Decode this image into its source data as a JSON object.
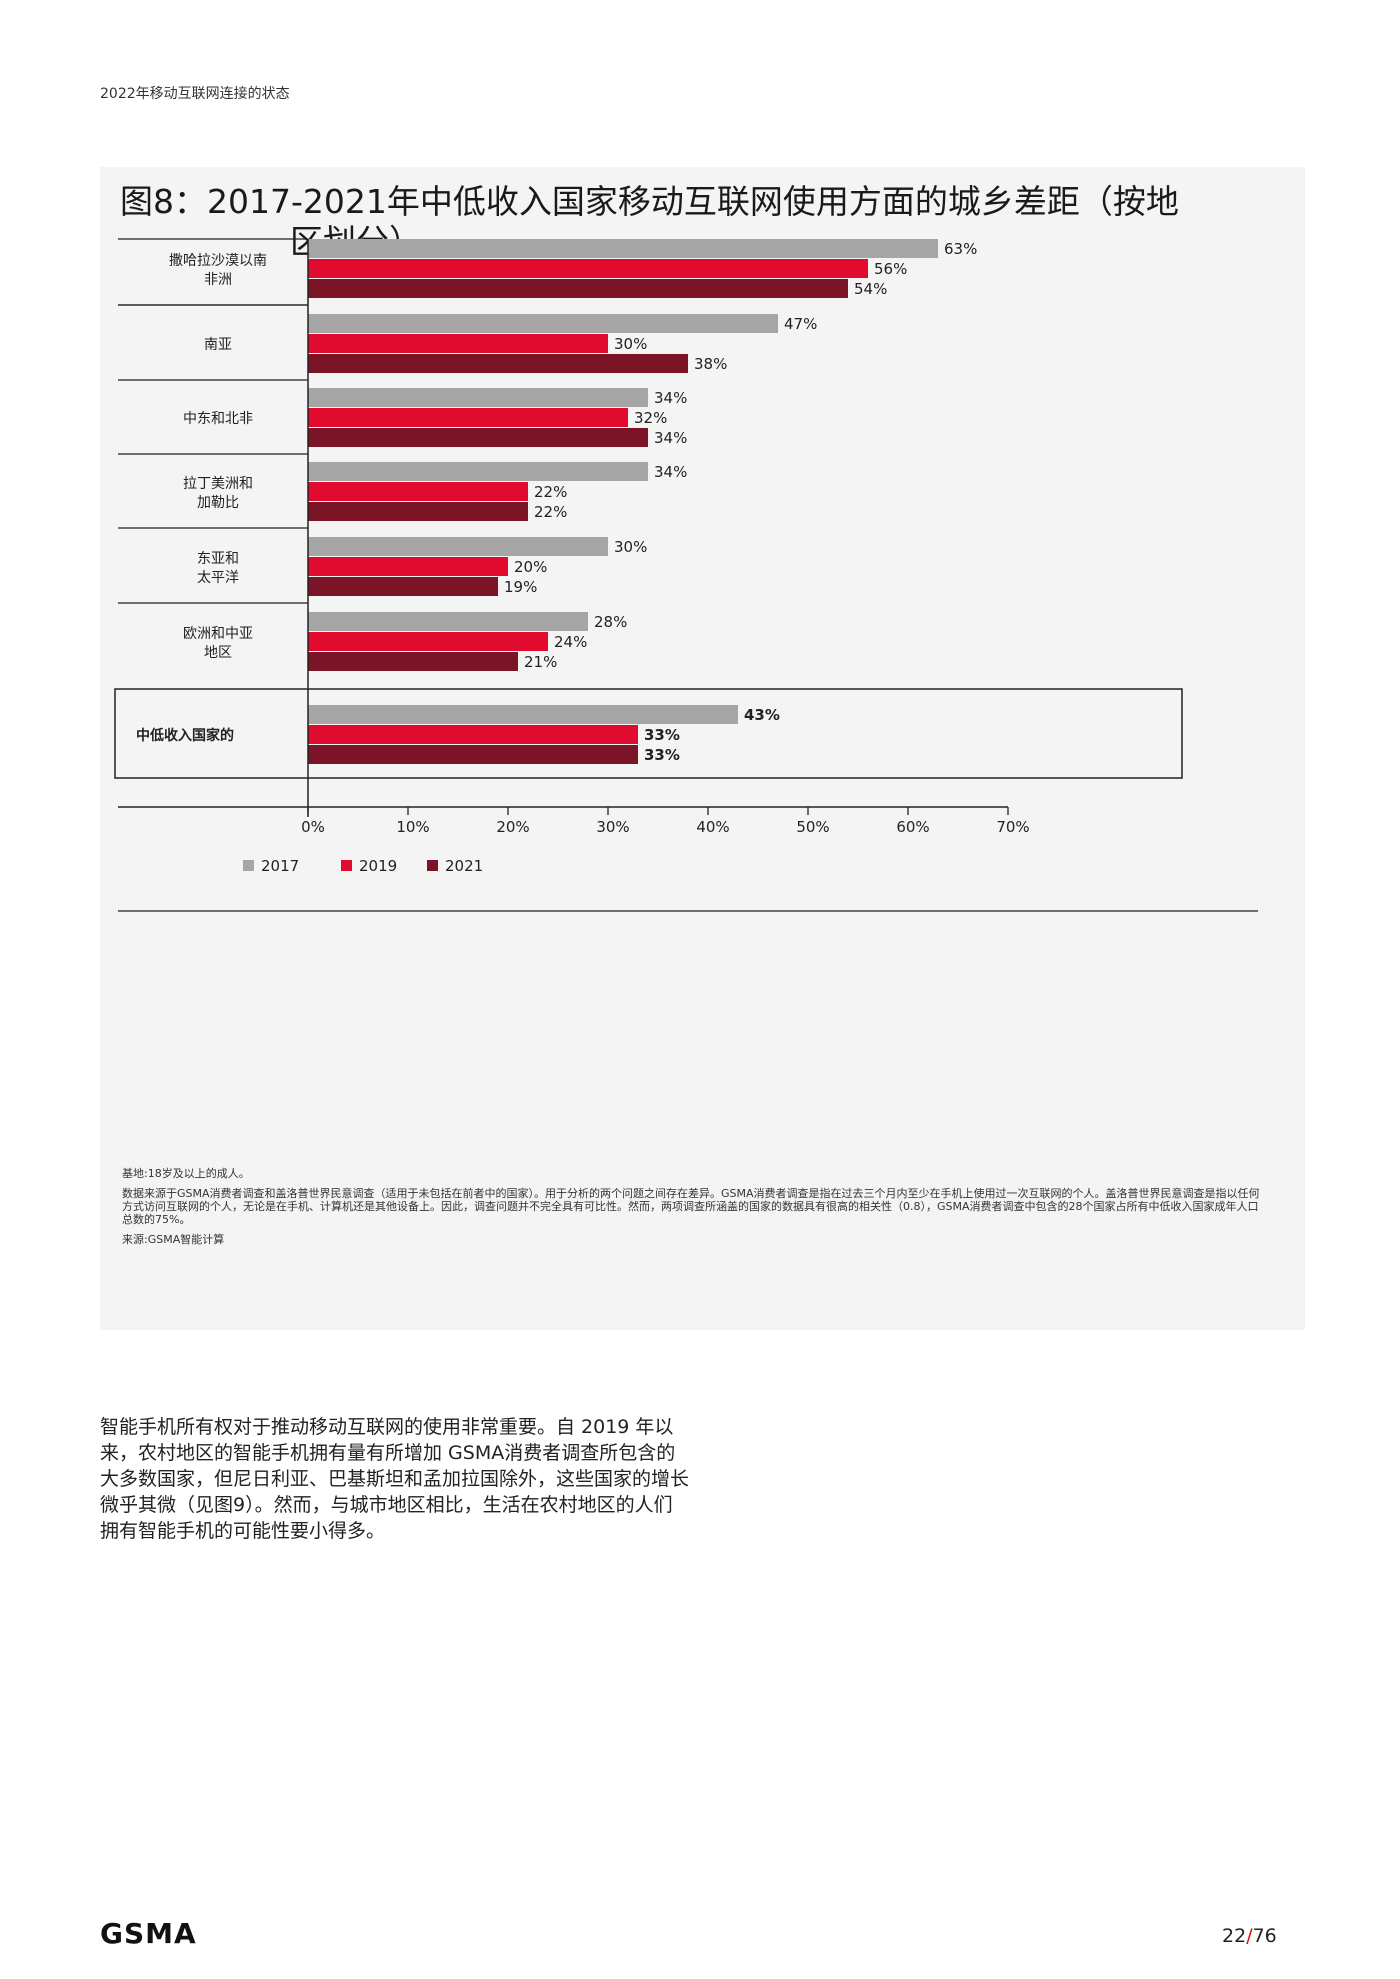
{
  "header": {
    "title": "2022年移动互联网连接的状态"
  },
  "figure": {
    "title_line1": "图8：2017-2021年中低收入国家移动互联网使用方面的城乡差距（按地",
    "title_line2": "区划分）"
  },
  "chart_data": {
    "type": "bar",
    "orientation": "horizontal",
    "categories": [
      [
        "撒哈拉沙漠以南",
        "非洲"
      ],
      [
        "南亚"
      ],
      [
        "中东和北非"
      ],
      [
        "拉丁美洲和",
        "加勒比"
      ],
      [
        "东亚和",
        "太平洋"
      ],
      [
        "欧洲和中亚",
        "地区"
      ],
      [
        "中低收入国家的"
      ]
    ],
    "series": [
      {
        "name": "2017",
        "color": "#a6a6a6",
        "values": [
          63,
          47,
          34,
          34,
          30,
          28,
          43
        ],
        "labels": [
          "63%",
          "47%",
          "34%",
          "34%",
          "30%",
          "28%",
          "43%"
        ]
      },
      {
        "name": "2019",
        "color": "#e10a2f",
        "values": [
          56,
          30,
          32,
          22,
          20,
          24,
          33
        ],
        "labels": [
          "56%",
          "30%",
          "32%",
          "22%",
          "20%",
          "24%",
          "33%"
        ]
      },
      {
        "name": "2021",
        "color": "#7a1426",
        "values": [
          54,
          38,
          34,
          22,
          19,
          21,
          33
        ],
        "labels": [
          "54%",
          "38%",
          "34%",
          "22%",
          "19%",
          "21%",
          "33%"
        ]
      }
    ],
    "xlim": [
      0,
      70
    ],
    "xticks": [
      "0%",
      "10%",
      "20%",
      "30%",
      "40%",
      "50%",
      "60%",
      "70%"
    ],
    "highlighted_category": 6,
    "legend_position": "bottom-left"
  },
  "notes": {
    "base": "基地:18岁及以上的成人。",
    "source_detail": "数据来源于GSMA消费者调查和盖洛普世界民意调查（适用于未包括在前者中的国家）。用于分析的两个问题之间存在差异。GSMA消费者调查是指在过去三个月内至少在手机上使用过一次互联网的个人。盖洛普世界民意调查是指以任何方式访问互联网的个人，无论是在手机、计算机还是其他设备上。因此，调查问题并不完全具有可比性。然而，两项调查所涵盖的国家的数据具有很高的相关性（0.8），GSMA消费者调查中包含的28个国家占所有中低收入国家成年人口总数的75%。",
    "source": "来源:GSMA智能计算"
  },
  "body": {
    "paragraph": "智能手机所有权对于推动移动互联网的使用非常重要。自 2019 年以来，农村地区的智能手机拥有量有所增加 GSMA消费者调查所包含的大多数国家，但尼日利亚、巴基斯坦和孟加拉国除外，这些国家的增长微乎其微（见图9）。然而，与城市地区相比，生活在农村地区的人们拥有智能手机的可能性要小得多。"
  },
  "footer": {
    "logo": "GSMA",
    "page_current": "22",
    "page_sep": "/",
    "page_total": "76"
  }
}
